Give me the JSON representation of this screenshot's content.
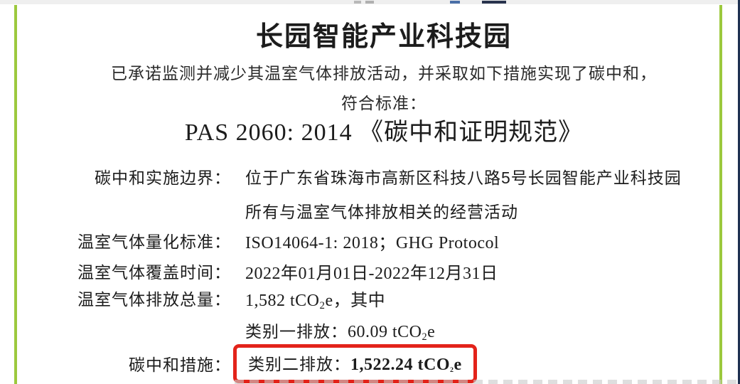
{
  "document": {
    "title": "长园智能产业科技园",
    "intro_line": "已承诺监测并减少其温室气体排放活动，并采取如下措施实现了碳中和，",
    "conform_line": "符合标准：",
    "standard_line": "PAS 2060: 2014 《碳中和证明规范》"
  },
  "fields": {
    "boundary": {
      "label": "碳中和实施边界：",
      "value_line1": "位于广东省珠海市高新区科技八路5号长园智能产业科技园",
      "value_line2": "所有与温室气体排放相关的经营活动"
    },
    "quantification": {
      "label": "温室气体量化标准：",
      "value": "ISO14064-1: 2018；GHG Protocol"
    },
    "coverage": {
      "label": "温室气体覆盖时间：",
      "value": "2022年01月01日-2022年12月31日"
    },
    "total_emissions": {
      "label": "温室气体排放总量：",
      "value_pre": "1,582 tCO",
      "value_sub": "2",
      "value_post": "e，其中"
    },
    "category1": {
      "label": "类别一排放：",
      "value_pre": "60.09 tCO",
      "value_sub": "2",
      "value_post": "e"
    },
    "measures": {
      "label": "碳中和措施：",
      "category2_label": "类别二排放：",
      "value_pre": "1,522.24 tCO",
      "value_sub": "2",
      "value_post": "e"
    }
  },
  "colors": {
    "accent_green": "#9cc93d",
    "edge_navy": "#1e3050",
    "highlight_red": "#e3231a"
  }
}
